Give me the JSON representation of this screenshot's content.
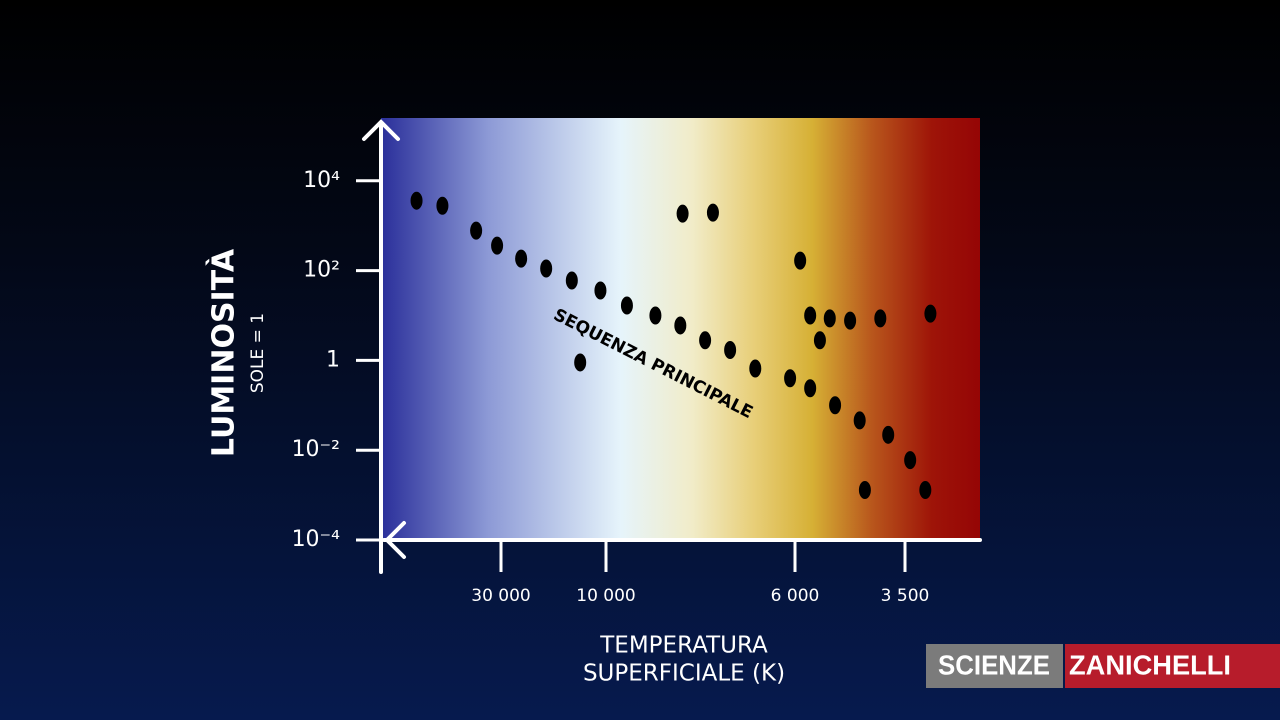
{
  "chart_data": {
    "type": "scatter",
    "y_label": "LUMINOSITÀ",
    "y_sublabel": "SOLE = 1",
    "x_label": [
      "TEMPERATURA",
      "SUPERFICIALE (K)"
    ],
    "annotation": "SEQUENZA PRINCIPALE",
    "color": "#000000",
    "xscale": "log",
    "yscale": "log",
    "xlim": [
      100000,
      2400
    ],
    "xticks": [
      {
        "value": 30000,
        "label": "30 000"
      },
      {
        "value": 10000,
        "label": "10 000"
      },
      {
        "value": 6000,
        "label": "6 000"
      },
      {
        "value": 3500,
        "label": "3 500"
      }
    ],
    "ylim": [
      0.0001,
      250000
    ],
    "yticks": [
      {
        "value": 10000,
        "label": "10⁴"
      },
      {
        "value": 100,
        "label": "10²"
      },
      1,
      {
        "value": 0.01,
        "label": "10⁻²"
      },
      {
        "value": 0.0001,
        "label": "10⁻⁴"
      }
    ],
    "x": [
      70000,
      54000,
      38500,
      31200,
      24300,
      18700,
      14300,
      10600,
      9450,
      8750,
      8180,
      7650,
      7150,
      6680,
      6080,
      5570,
      4930,
      4370,
      3800,
      3410,
      3160,
      5570,
      5060,
      4580,
      3950,
      3080,
      5850,
      5310,
      8130,
      7490,
      13100,
      4260
    ],
    "y": [
      3600,
      2780,
      774,
      360,
      185,
      111,
      60,
      36,
      16.7,
      10,
      6,
      2.8,
      1.7,
      0.66,
      0.4,
      0.24,
      0.1,
      0.046,
      0.022,
      0.006,
      0.0013,
      10,
      8.6,
      7.7,
      8.6,
      11,
      167,
      2.8,
      1850,
      1950,
      0.9,
      0.0013
    ]
  },
  "branding": {
    "left": "SCIENZE",
    "right": "ZANICHELLI"
  }
}
